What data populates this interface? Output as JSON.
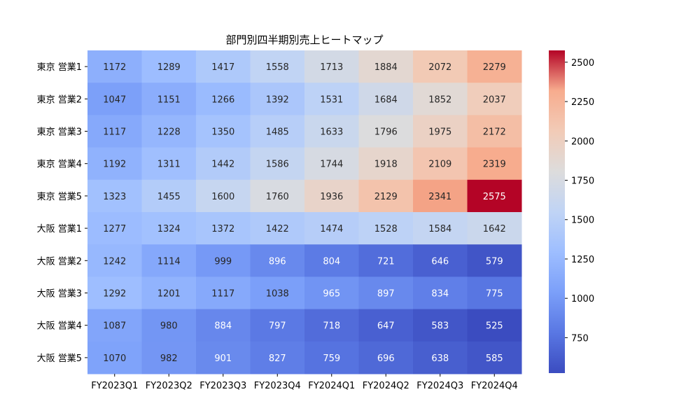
{
  "chart_data": {
    "type": "heatmap",
    "title": "部門別四半期別売上ヒートマップ",
    "xlabel": "",
    "ylabel": "",
    "x_categories": [
      "FY2023Q1",
      "FY2023Q2",
      "FY2023Q3",
      "FY2023Q4",
      "FY2024Q1",
      "FY2024Q2",
      "FY2024Q3",
      "FY2024Q4"
    ],
    "y_categories": [
      "東京 営業1",
      "東京 営業2",
      "東京 営業3",
      "東京 営業4",
      "東京 営業5",
      "大阪 営業1",
      "大阪 営業2",
      "大阪 営業3",
      "大阪 営業4",
      "大阪 営業5"
    ],
    "values": [
      [
        1172,
        1289,
        1417,
        1558,
        1713,
        1884,
        2072,
        2279
      ],
      [
        1047,
        1151,
        1266,
        1392,
        1531,
        1684,
        1852,
        2037
      ],
      [
        1117,
        1228,
        1350,
        1485,
        1633,
        1796,
        1975,
        2172
      ],
      [
        1192,
        1311,
        1442,
        1586,
        1744,
        1918,
        2109,
        2319
      ],
      [
        1323,
        1455,
        1600,
        1760,
        1936,
        2129,
        2341,
        2575
      ],
      [
        1277,
        1324,
        1372,
        1422,
        1474,
        1528,
        1584,
        1642
      ],
      [
        1242,
        1114,
        999,
        896,
        804,
        721,
        646,
        579
      ],
      [
        1292,
        1201,
        1117,
        1038,
        965,
        897,
        834,
        775
      ],
      [
        1087,
        980,
        884,
        797,
        718,
        647,
        583,
        525
      ],
      [
        1070,
        982,
        901,
        827,
        759,
        696,
        638,
        585
      ]
    ],
    "colormap": "coolwarm",
    "vmin": 525,
    "vmax": 2575,
    "colorbar_ticks": [
      750,
      1000,
      1250,
      1500,
      1750,
      2000,
      2250,
      2500
    ],
    "annotate": true,
    "grid": false
  }
}
